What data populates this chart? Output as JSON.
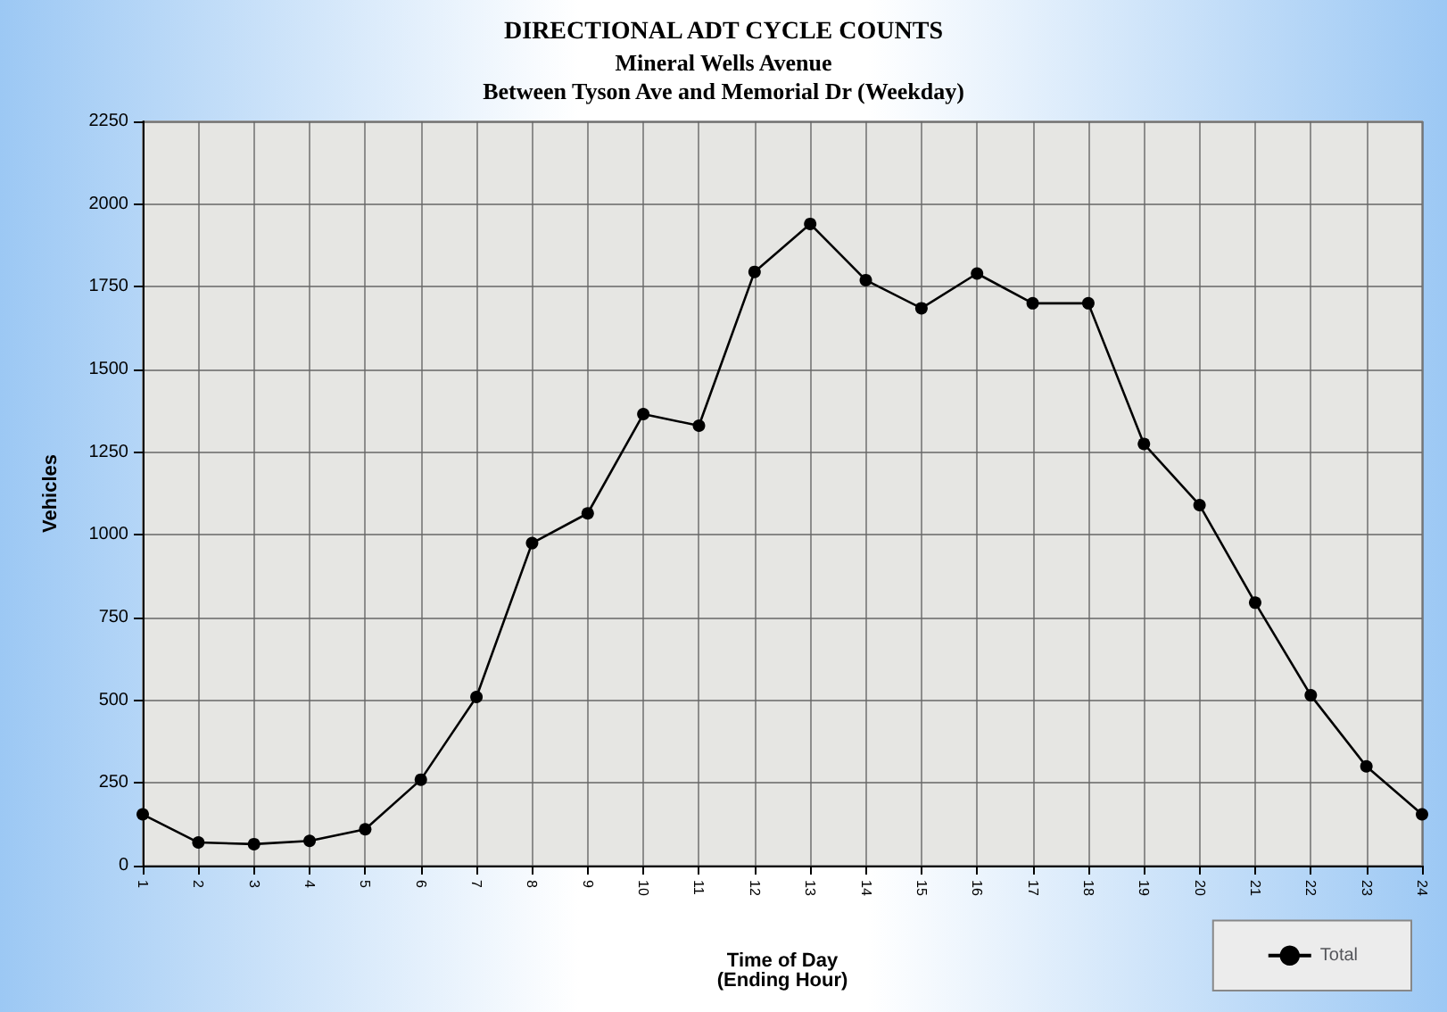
{
  "chart_data": {
    "type": "line",
    "title": "DIRECTIONAL ADT CYCLE COUNTS",
    "subtitle": "Mineral Wells Avenue\nBetween Tyson Ave and Memorial Dr (Weekday)",
    "xlabel": "Time of Day\n(Ending Hour)",
    "ylabel": "Vehicles",
    "categories": [
      "1",
      "2",
      "3",
      "4",
      "5",
      "6",
      "7",
      "8",
      "9",
      "10",
      "11",
      "12",
      "13",
      "14",
      "15",
      "16",
      "17",
      "18",
      "19",
      "20",
      "21",
      "22",
      "23",
      "24"
    ],
    "series": [
      {
        "name": "Total",
        "color": "#000000",
        "values": [
          155,
          70,
          65,
          75,
          110,
          260,
          510,
          975,
          1065,
          1365,
          1330,
          1795,
          1940,
          1770,
          1685,
          1790,
          1700,
          1700,
          1275,
          1090,
          795,
          515,
          300,
          155
        ]
      }
    ],
    "ylim": [
      0,
      2250
    ],
    "yticks": [
      0,
      250,
      500,
      750,
      1000,
      1250,
      1500,
      1750,
      2000,
      2250
    ],
    "grid": true,
    "legend": "bottom right",
    "marker": "circle",
    "line_style": "solid"
  }
}
